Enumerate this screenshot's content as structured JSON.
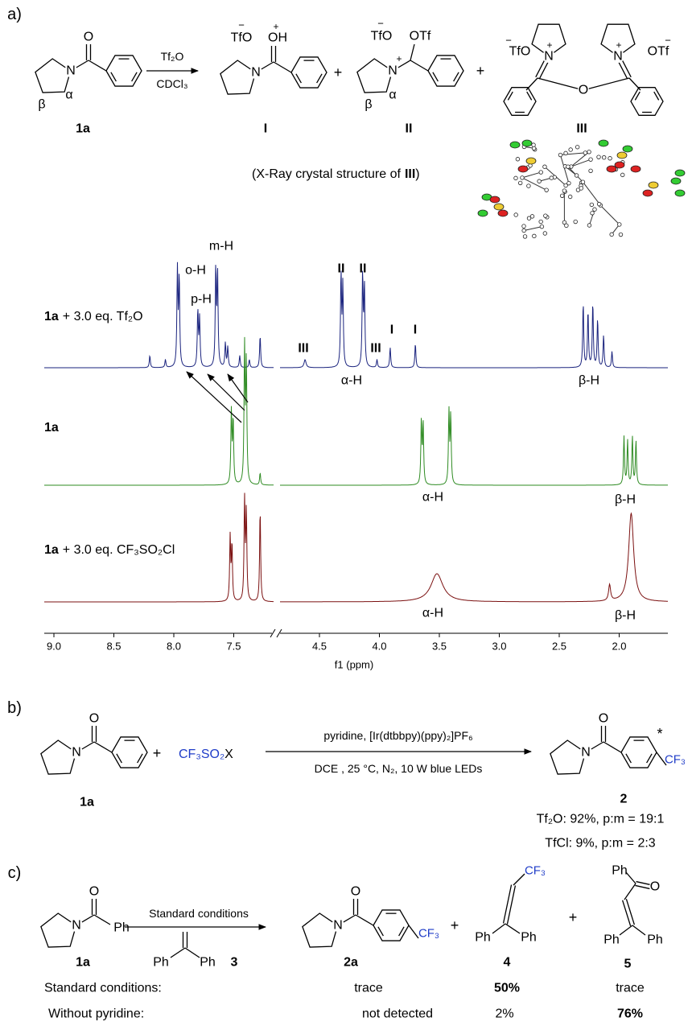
{
  "panel_a": {
    "label": "a)",
    "c1a": {
      "N": "N",
      "O": "O",
      "beta": "β",
      "alpha": "α",
      "name": "1a"
    },
    "arrow_top": "Tf₂O",
    "arrow_bottom": "CDCl₃",
    "cI": {
      "N": "N",
      "O": "OH",
      "plus": "+",
      "anion": "TfO",
      "minus": "−",
      "name": "I"
    },
    "plus1": "+",
    "cII": {
      "N": "N",
      "plus": "+",
      "OTf": "OTf",
      "anion": "TfO",
      "minus": "−",
      "beta": "β",
      "alpha": "α",
      "name": "II"
    },
    "plus2": "+",
    "cIII": {
      "N1": "N",
      "N2": "N",
      "plus1": "+",
      "plus2": "+",
      "O": "O",
      "anion1": "TfO",
      "minus1": "−",
      "anion2": "OTf",
      "minus2": "−",
      "name": "III"
    },
    "xray_caption": {
      "pre": "(X-Ray crystal structure of",
      "bold": "III",
      "post": ")"
    },
    "spectra": [
      {
        "compound": "1a",
        "text": "+ 3.0 eq. Tf₂O",
        "peak_labels": [
          "o-H",
          "p-H",
          "m-H",
          "II",
          "II",
          "III",
          "III",
          "I",
          "I",
          "α-H",
          "β-H"
        ]
      },
      {
        "compound": "1a",
        "peak_labels": [
          "α-H",
          "β-H"
        ]
      },
      {
        "compound": "1a",
        "text": "+ 3.0 eq. CF₃SO₂Cl",
        "peak_labels": [
          "α-H",
          "β-H"
        ]
      }
    ],
    "axis": {
      "ticks": [
        {
          "value": 9,
          "label": "9.0"
        },
        {
          "value": 8.5,
          "label": "8.5"
        },
        {
          "value": 8,
          "label": "8.0"
        },
        {
          "value": 7.5,
          "label": "7.5"
        },
        {
          "value": 4.5,
          "label": "4.5"
        },
        {
          "value": 4,
          "label": "4.0"
        },
        {
          "value": 3.5,
          "label": "3.5"
        },
        {
          "value": 3,
          "label": "3.0"
        },
        {
          "value": 2.5,
          "label": "2.5"
        },
        {
          "value": 2,
          "label": "2.0"
        }
      ],
      "label": "f1 (ppm)"
    }
  },
  "panel_b": {
    "label": "b)",
    "c1a": {
      "N": "N",
      "O": "O",
      "name": "1a"
    },
    "plus": "+",
    "reagent": {
      "cf": "CF₃SO₂",
      "x": "X"
    },
    "conditions_top": "pyridine, [Ir(dtbbpy)(ppy)₂]PF₆",
    "conditions_bottom": "DCE , 25 °C, N₂, 10 W blue LEDs",
    "c2": {
      "N": "N",
      "O": "O",
      "star": "*",
      "cf3": "CF₃",
      "name": "2"
    },
    "results": [
      "Tf₂O: 92%, p:m = 19:1",
      "TfCl: 9%, p:m = 2:3"
    ]
  },
  "panel_c": {
    "label": "c)",
    "c1a": {
      "N": "N",
      "O": "O",
      "Ph": "Ph",
      "name": "1a"
    },
    "arrow_top": "Standard conditions",
    "c3": {
      "Ph1": "Ph",
      "Ph2": "Ph",
      "name": "3"
    },
    "c2a": {
      "N": "N",
      "O": "O",
      "cf3": "CF₃",
      "name": "2a"
    },
    "plus1": "+",
    "c4": {
      "cf3": "CF₃",
      "Ph1": "Ph",
      "Ph2": "Ph",
      "name": "4"
    },
    "plus2": "+",
    "c5": {
      "Ph_top": "Ph",
      "O": "O",
      "Ph1": "Ph",
      "Ph2": "Ph",
      "name": "5"
    },
    "table": {
      "rows": [
        [
          "Standard conditions:",
          "trace",
          "50%",
          "trace"
        ],
        [
          "Without pyridine:",
          "not detected",
          "2%",
          "76%"
        ]
      ]
    }
  }
}
